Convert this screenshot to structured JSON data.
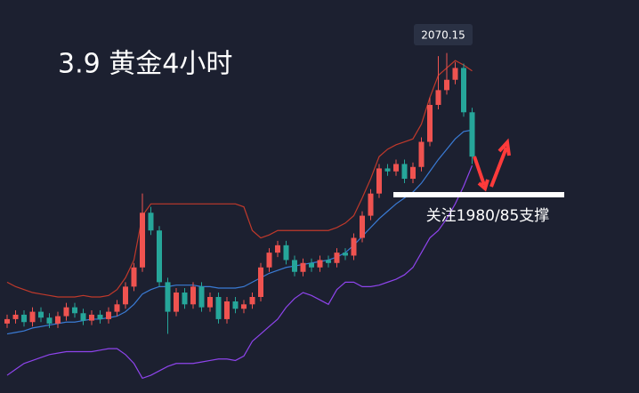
{
  "chart_data": {
    "type": "candlestick",
    "title": "3.9 黄金4小时",
    "annotation": "关注1980/85支撑",
    "ylim": [
      1840,
      2106
    ],
    "up_color": "#ef5350",
    "down_color": "#26a69a",
    "open": [
      1887,
      1890,
      1893,
      1888,
      1895,
      1891,
      1887,
      1892,
      1898,
      1894,
      1889,
      1893,
      1890,
      1895,
      1900,
      1912,
      1925,
      1962,
      1950,
      1915,
      1895,
      1908,
      1900,
      1912,
      1898,
      1905,
      1890,
      1902,
      1897,
      1900,
      1905,
      1925,
      1935,
      1940,
      1930,
      1922,
      1928,
      1925,
      1930,
      1928,
      1935,
      1933,
      1945,
      1960,
      1975,
      1992,
      1990,
      1995,
      1985,
      1993,
      2010,
      2035,
      2045,
      2052,
      2060,
      2030
    ],
    "high": [
      1893,
      1896,
      1896,
      1898,
      1898,
      1894,
      1895,
      1901,
      1901,
      1897,
      1896,
      1896,
      1898,
      1903,
      1915,
      1928,
      1975,
      1966,
      1953,
      1918,
      1911,
      1911,
      1915,
      1915,
      1908,
      1908,
      1905,
      1905,
      1903,
      1908,
      1928,
      1938,
      1943,
      1943,
      1933,
      1931,
      1931,
      1933,
      1933,
      1938,
      1938,
      1948,
      1963,
      1978,
      1995,
      1995,
      1998,
      1998,
      1996,
      2013,
      2040,
      2068,
      2070.15,
      2064,
      2063,
      2033
    ],
    "low": [
      1884,
      1887,
      1885,
      1885,
      1888,
      1884,
      1884,
      1889,
      1891,
      1886,
      1886,
      1887,
      1887,
      1892,
      1897,
      1909,
      1922,
      1947,
      1912,
      1880,
      1892,
      1897,
      1897,
      1895,
      1895,
      1887,
      1887,
      1894,
      1894,
      1897,
      1902,
      1922,
      1932,
      1927,
      1919,
      1919,
      1922,
      1922,
      1925,
      1925,
      1930,
      1930,
      1942,
      1957,
      1972,
      1987,
      1987,
      1982,
      1982,
      1990,
      2007,
      2032,
      2042,
      2049,
      2027,
      1995
    ],
    "close": [
      1890,
      1893,
      1888,
      1895,
      1891,
      1887,
      1892,
      1898,
      1894,
      1889,
      1893,
      1890,
      1895,
      1900,
      1912,
      1925,
      1962,
      1950,
      1915,
      1895,
      1908,
      1900,
      1912,
      1898,
      1905,
      1890,
      1902,
      1897,
      1900,
      1905,
      1925,
      1935,
      1940,
      1930,
      1922,
      1928,
      1925,
      1930,
      1928,
      1935,
      1933,
      1945,
      1960,
      1975,
      1992,
      1990,
      1995,
      1985,
      1993,
      2010,
      2035,
      2045,
      2052,
      2060,
      2030,
      2000
    ],
    "series": [
      {
        "color": "#c0392b",
        "values": [
          1915,
          1912,
          1910,
          1908,
          1907,
          1906,
          1905,
          1905,
          1905,
          1906,
          1905,
          1905,
          1906,
          1910,
          1918,
          1930,
          1960,
          1968,
          1968,
          1968,
          1968,
          1968,
          1968,
          1968,
          1968,
          1968,
          1968,
          1968,
          1966,
          1950,
          1945,
          1947,
          1950,
          1950,
          1950,
          1950,
          1950,
          1950,
          1950,
          1952,
          1955,
          1960,
          1972,
          1985,
          2000,
          2005,
          2008,
          2010,
          2012,
          2022,
          2040,
          2055,
          2060,
          2065,
          2062,
          2058
        ]
      },
      {
        "color": "#3a7bd5",
        "values": [
          1880,
          1881,
          1882,
          1884,
          1885,
          1886,
          1887,
          1888,
          1888,
          1889,
          1890,
          1890,
          1891,
          1892,
          1895,
          1900,
          1907,
          1910,
          1912,
          1912,
          1913,
          1913,
          1913,
          1912,
          1912,
          1911,
          1911,
          1911,
          1912,
          1915,
          1918,
          1921,
          1923,
          1925,
          1926,
          1927,
          1928,
          1929,
          1930,
          1932,
          1935,
          1940,
          1946,
          1952,
          1958,
          1963,
          1968,
          1972,
          1976,
          1982,
          1990,
          1998,
          2005,
          2012,
          2017,
          2018
        ]
      },
      {
        "color": "#8e44ec",
        "values": [
          1852,
          1856,
          1860,
          1862,
          1864,
          1866,
          1867,
          1868,
          1868,
          1868,
          1868,
          1869,
          1870,
          1870,
          1866,
          1860,
          1850,
          1852,
          1855,
          1858,
          1860,
          1860,
          1860,
          1861,
          1862,
          1863,
          1863,
          1862,
          1865,
          1875,
          1880,
          1885,
          1890,
          1898,
          1904,
          1908,
          1906,
          1903,
          1900,
          1910,
          1915,
          1915,
          1912,
          1912,
          1913,
          1915,
          1917,
          1920,
          1925,
          1935,
          1945,
          1950,
          1958,
          1968,
          1980,
          1994
        ]
      }
    ]
  }
}
